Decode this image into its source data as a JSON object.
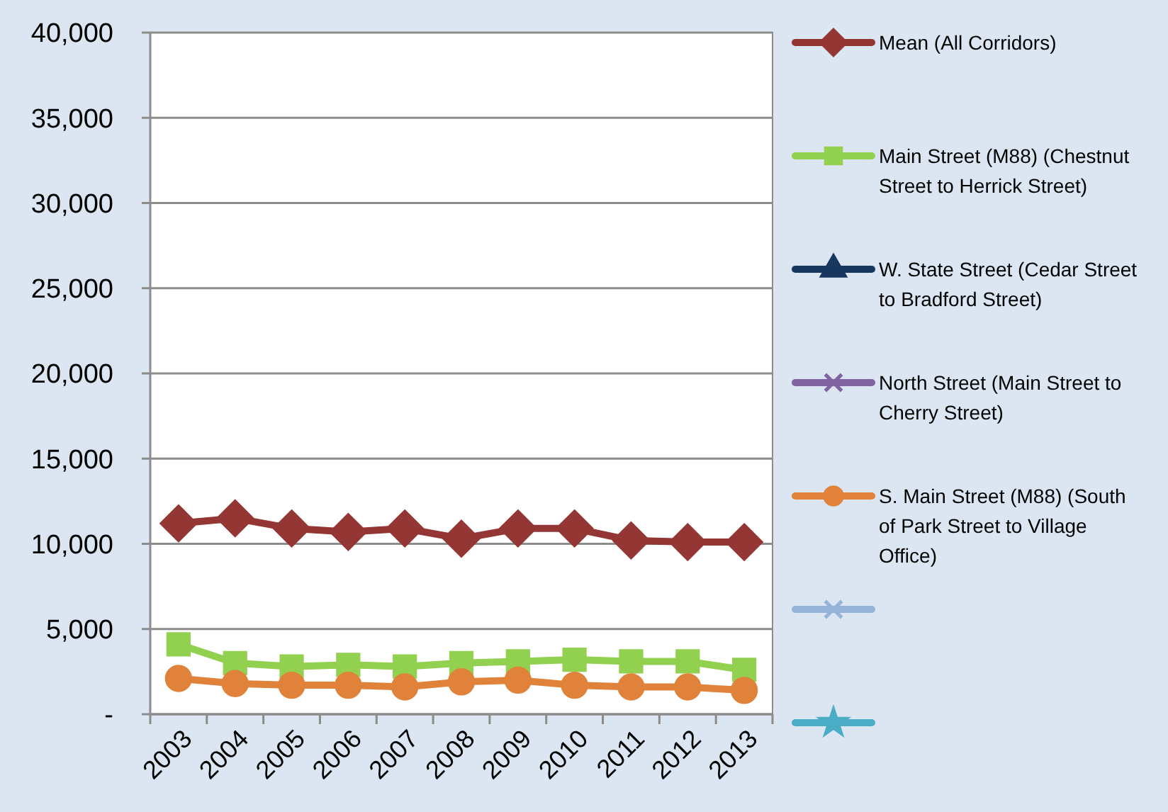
{
  "chart_data": {
    "type": "line",
    "categories": [
      "2003",
      "2004",
      "2005",
      "2006",
      "2007",
      "2008",
      "2009",
      "2010",
      "2011",
      "2012",
      "2013"
    ],
    "series": [
      {
        "name": "Mean (All Corridors)",
        "color": "#943634",
        "marker": "diamond",
        "values": [
          11200,
          11500,
          10900,
          10700,
          10900,
          10300,
          10900,
          10900,
          10200,
          10100,
          10100
        ]
      },
      {
        "name": "Main Street (M88) (Chestnut Street to Herrick Street)",
        "color": "#92d050",
        "marker": "square",
        "values": [
          4100,
          3000,
          2800,
          2900,
          2800,
          3000,
          3100,
          3200,
          3100,
          3100,
          2600
        ]
      },
      {
        "name": "W. State Street (Cedar Street to Bradford Street)",
        "color": "#17375e",
        "marker": "triangle",
        "values": [
          null,
          null,
          null,
          null,
          null,
          null,
          null,
          null,
          null,
          null,
          null
        ]
      },
      {
        "name": "North Street (Main Street to Cherry Street)",
        "color": "#8064a2",
        "marker": "cross",
        "values": [
          null,
          null,
          null,
          null,
          null,
          null,
          null,
          null,
          null,
          null,
          null
        ]
      },
      {
        "name": "S. Main Street (M88) (South of Park Street to Village Office)",
        "color": "#e0823a",
        "marker": "circle",
        "values": [
          2100,
          1800,
          1700,
          1700,
          1600,
          1900,
          2000,
          1700,
          1600,
          1600,
          1400
        ]
      },
      {
        "color": "#95b3d7",
        "marker": "cross",
        "values": [
          null,
          null,
          null,
          null,
          null,
          null,
          null,
          null,
          null,
          null,
          null
        ]
      },
      {
        "color": "#4bacc6",
        "marker": "star",
        "values": [
          null,
          null,
          null,
          null,
          null,
          null,
          null,
          null,
          null,
          null,
          null
        ]
      }
    ],
    "ylim": [
      0,
      40000
    ],
    "yticks": [
      {
        "value": 0,
        "label": "-"
      },
      {
        "value": 5000,
        "label": "5,000"
      },
      {
        "value": 10000,
        "label": "10,000"
      },
      {
        "value": 15000,
        "label": "15,000"
      },
      {
        "value": 20000,
        "label": "20,000"
      },
      {
        "value": 25000,
        "label": "25,000"
      },
      {
        "value": 30000,
        "label": "30,000"
      },
      {
        "value": 35000,
        "label": "35,000"
      },
      {
        "value": 40000,
        "label": "40,000"
      }
    ],
    "grid": "y",
    "legend": "right"
  }
}
